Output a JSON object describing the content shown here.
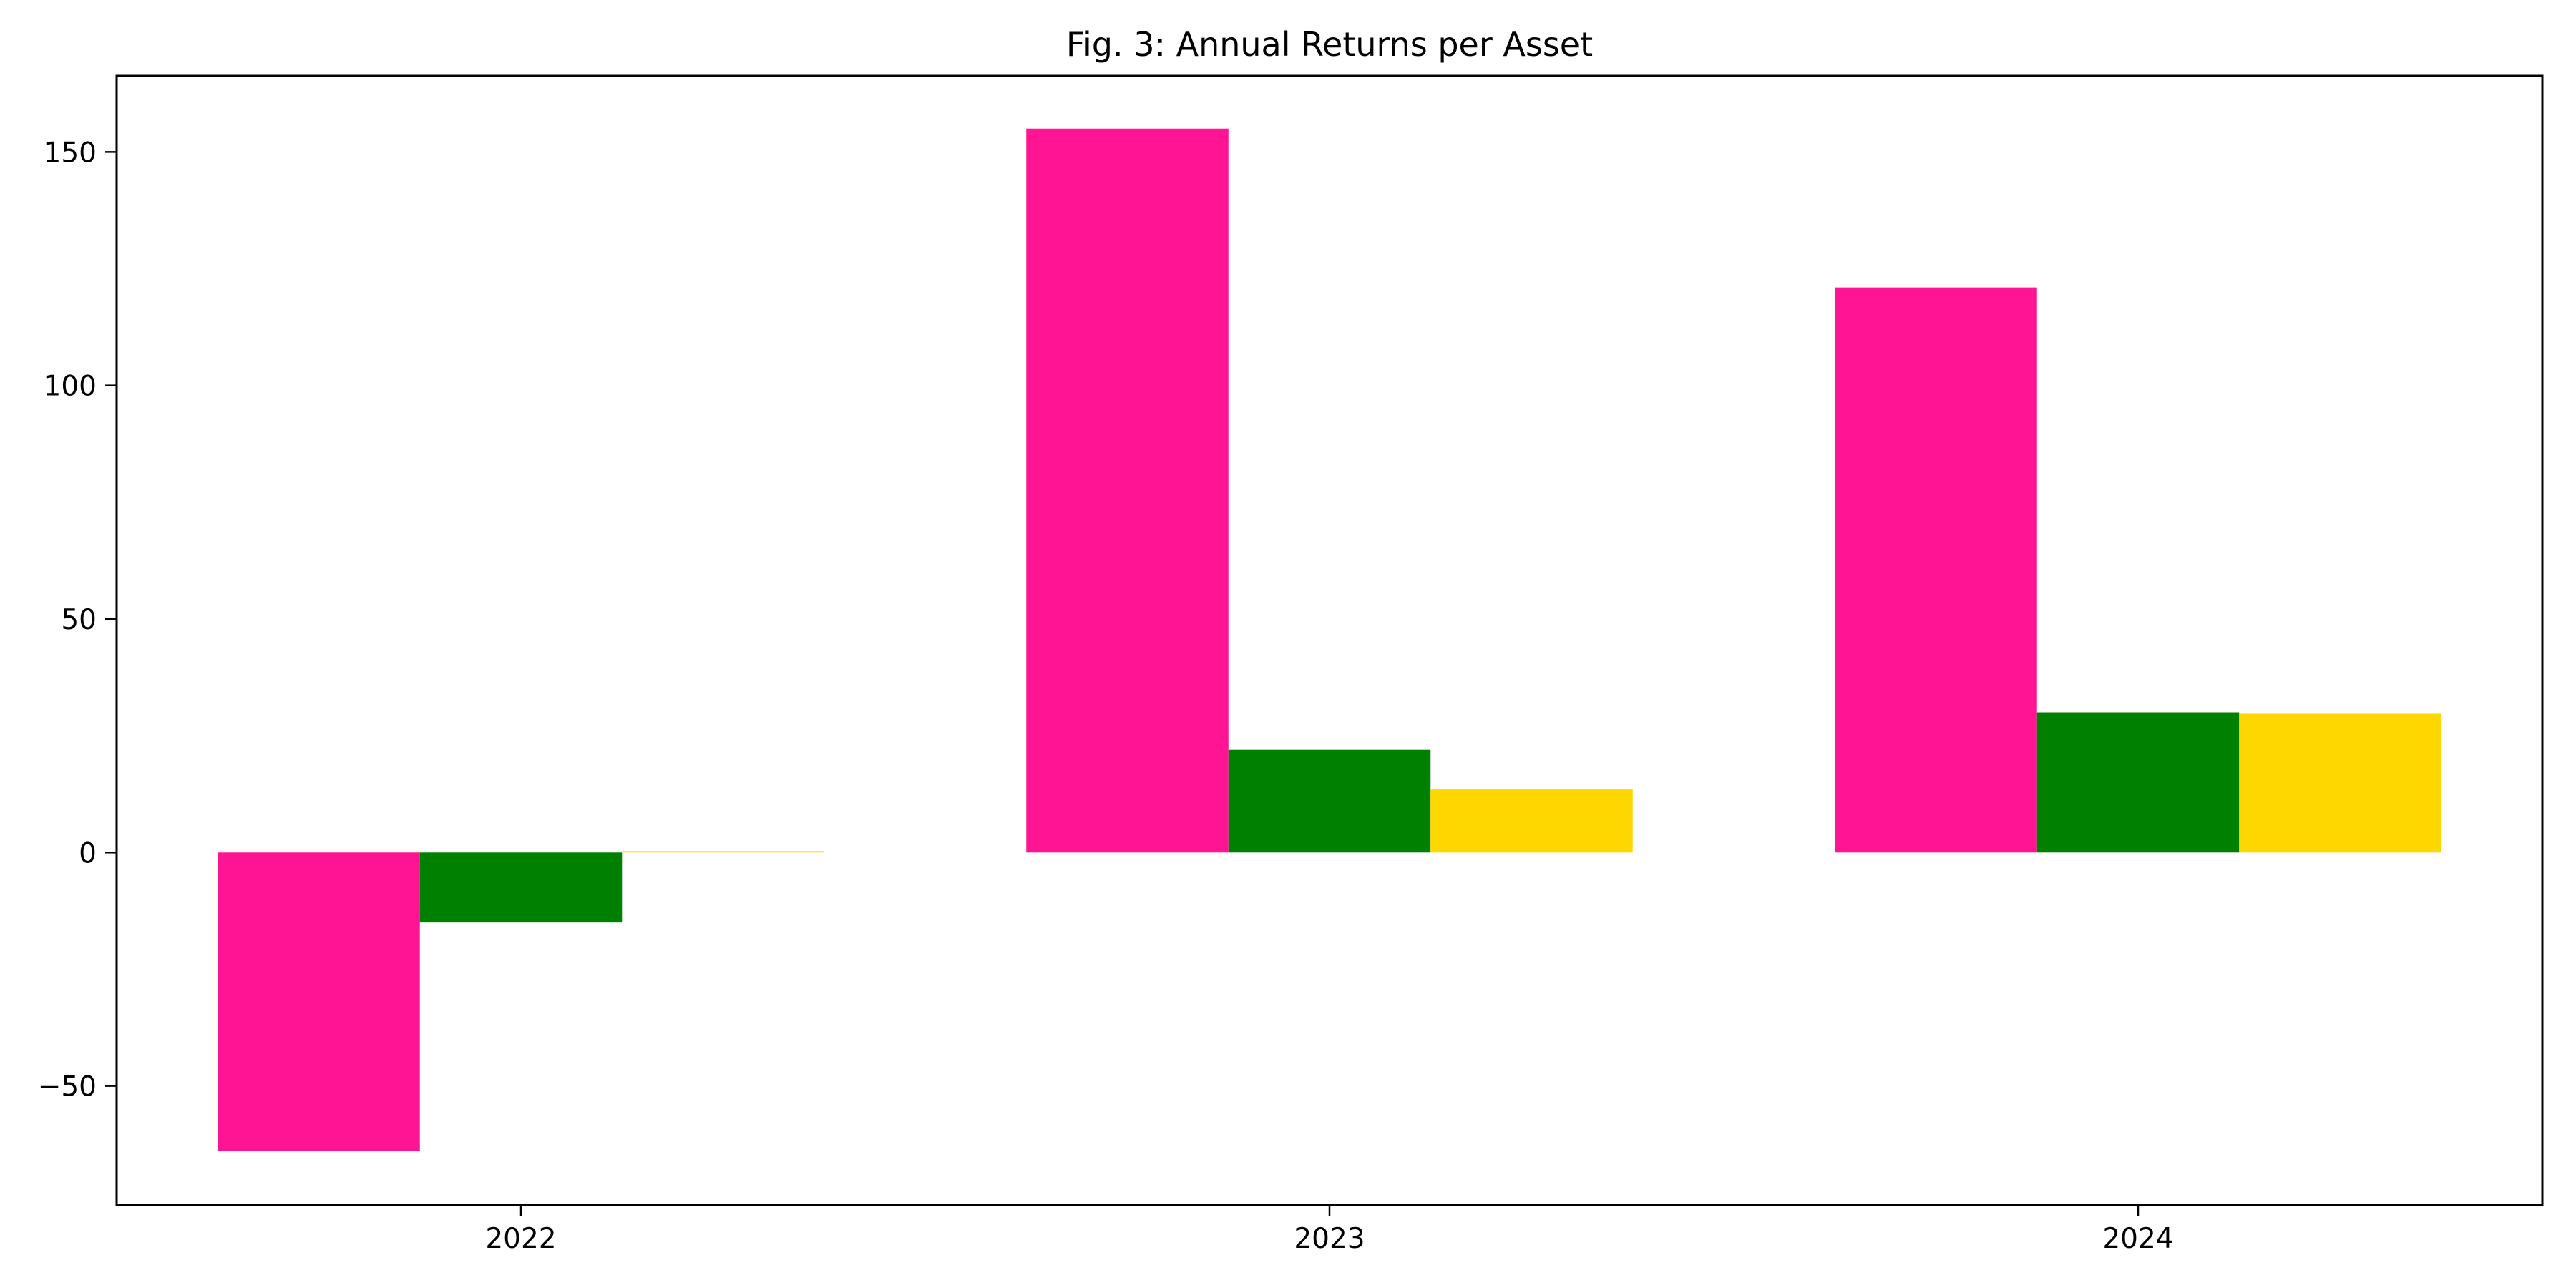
{
  "chart_data": {
    "type": "bar",
    "title": "Fig. 3: Annual Returns per Asset",
    "xlabel": "",
    "ylabel": "",
    "categories": [
      "2022",
      "2023",
      "2024"
    ],
    "series": [
      {
        "color": "#ff1493",
        "values": [
          -64,
          155,
          121
        ]
      },
      {
        "color": "#008000",
        "values": [
          -15,
          22,
          30
        ]
      },
      {
        "color": "#ffd700",
        "values": [
          0.3,
          13.5,
          29.7
        ]
      }
    ],
    "ylim": [
      -75.5,
      166.3
    ],
    "yticks": [
      -50,
      0,
      50,
      100,
      150
    ],
    "ytick_labels": [
      "−50",
      "0",
      "50",
      "100",
      "150"
    ],
    "grid": false,
    "legend": "none"
  }
}
